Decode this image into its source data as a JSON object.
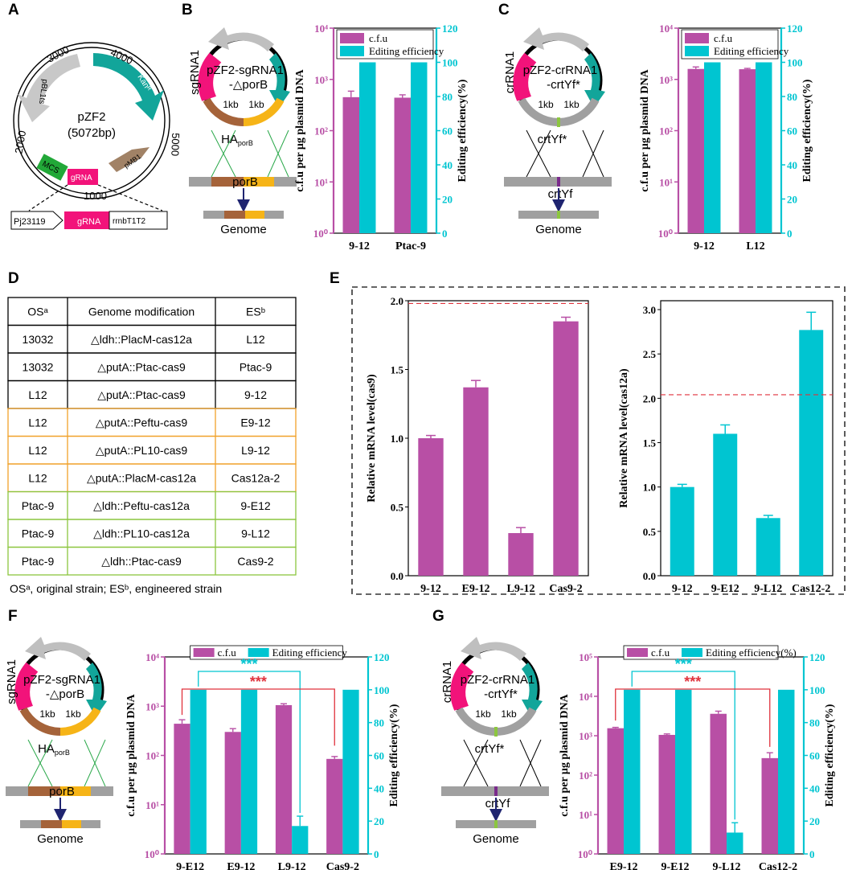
{
  "panel_letters": {
    "A": "A",
    "B": "B",
    "C": "C",
    "D": "D",
    "E": "E",
    "F": "F",
    "G": "G"
  },
  "colors": {
    "magenta": "#b84fa5",
    "cyan": "#00c5d1",
    "pink": "#f2137a",
    "teal": "#12a59a",
    "gray": "#bfbfbf",
    "brown": "#a5633a",
    "orange": "#f6b417",
    "green": "#3fa830",
    "navy": "#1f2470",
    "red": "#e0323c",
    "purple": "#7a2b8c",
    "lime": "#8cc63f",
    "mcs": "#22a838",
    "pmb1": "#a18266"
  },
  "panelA": {
    "plasmid_name": "pZF2",
    "plasmid_size": "(5072bp)",
    "ticks": [
      "1000",
      "2000",
      "3000",
      "4000",
      "5000"
    ],
    "features": {
      "kan": "Kanᴿ",
      "pbl": "pBL1ts",
      "mcs": "MCS",
      "grna": "gRNA",
      "pmb1": "pMB1"
    },
    "cassette": {
      "promoter": "Pj23119",
      "grna": "gRNA",
      "terminator": "rrnbT1T2"
    }
  },
  "schemes": {
    "B": {
      "side": "sgRNA1",
      "title1": "pZF2-sgRNA1",
      "title2": "-△porB",
      "kb": "1kb",
      "kb2": "1kb",
      "ha": "HA",
      "ha_sub": "porB",
      "gene": "porB",
      "genome": "Genome"
    },
    "C": {
      "side": "crRNA1",
      "title1": "pZF2-crRNA1",
      "title2": "-crtYf*",
      "kb": "1kb",
      "kb2": "1kb",
      "ha": "crtYf*",
      "gene": "crtYf",
      "genome": "Genome"
    },
    "F": {
      "side": "sgRNA1",
      "title1": "pZF2-sgRNA1",
      "title2": "-△porB",
      "kb": "1kb",
      "kb2": "1kb",
      "ha": "HA",
      "ha_sub": "porB",
      "gene": "porB",
      "genome": "Genome"
    },
    "G": {
      "side": "crRNA1",
      "title1": "pZF2-crRNA1",
      "title2": "-crtYf*",
      "kb": "1kb",
      "kb2": "1kb",
      "ha": "crtYf*",
      "gene": "crtYf",
      "genome": "Genome"
    }
  },
  "tableD": {
    "headers": [
      "OSᵃ",
      "Genome modification",
      "ESᵇ"
    ],
    "rows": [
      [
        "13032",
        "△ldh::PlacM-cas12a",
        "L12"
      ],
      [
        "13032",
        "△putA::Ptac-cas9",
        "Ptac-9"
      ],
      [
        "L12",
        "△putA::Ptac-cas9",
        "9-12"
      ],
      [
        "L12",
        "△putA::Peftu-cas9",
        "E9-12"
      ],
      [
        "L12",
        "△putA::PL10-cas9",
        "L9-12"
      ],
      [
        "L12",
        "△putA::PlacM-cas12a",
        "Cas12a-2"
      ],
      [
        "Ptac-9",
        "△ldh::Peftu-cas12a",
        "9-E12"
      ],
      [
        "Ptac-9",
        "△ldh::PL10-cas12a",
        "9-L12"
      ],
      [
        "Ptac-9",
        "△ldh::Ptac-cas9",
        "Cas9-2"
      ]
    ],
    "footnote": "OSᵃ, original strain; ESᵇ, engineered strain"
  },
  "chart_data": [
    {
      "id": "B",
      "type": "bar",
      "categories": [
        "9-12",
        "Ptac-9"
      ],
      "legend": [
        "c.f.u",
        "Editing efficiency"
      ],
      "series": [
        {
          "name": "c.f.u",
          "axis": "left",
          "values": [
            450,
            440
          ],
          "errors": [
            140,
            60
          ]
        },
        {
          "name": "Editing efficiency",
          "axis": "right",
          "values": [
            100,
            100
          ]
        }
      ],
      "ylabel": "c.f.u per μg plasmid DNA",
      "y2label": "Editing efficiency(%)",
      "ylim": [
        1,
        10000
      ],
      "yscale": "log",
      "y2lim": [
        0,
        120
      ],
      "ylabels": [
        "10⁰",
        "10¹",
        "10²",
        "10³",
        "10⁴"
      ],
      "y2ticks": [
        "0",
        "20",
        "40",
        "60",
        "80",
        "100",
        "120"
      ]
    },
    {
      "id": "C",
      "type": "bar",
      "categories": [
        "9-12",
        "L12"
      ],
      "legend": [
        "c.f.u",
        "Editing efficiency"
      ],
      "series": [
        {
          "name": "c.f.u",
          "axis": "left",
          "values": [
            1600,
            1580
          ],
          "errors": [
            150,
            60
          ]
        },
        {
          "name": "Editing efficiency",
          "axis": "right",
          "values": [
            100,
            100
          ]
        }
      ],
      "ylabel": "c.f.u per μg plasmid DNA",
      "y2label": "Editing efficiency(%)",
      "ylim": [
        1,
        10000
      ],
      "yscale": "log",
      "y2lim": [
        0,
        120
      ],
      "ylabels": [
        "10⁰",
        "10¹",
        "10²",
        "10³",
        "10⁴"
      ],
      "y2ticks": [
        "0",
        "20",
        "40",
        "60",
        "80",
        "100",
        "120"
      ]
    },
    {
      "id": "E1",
      "type": "bar",
      "categories": [
        "9-12",
        "E9-12",
        "L9-12",
        "Cas9-2"
      ],
      "series": [
        {
          "name": "Relative mRNA level(cas9)",
          "values": [
            1.0,
            1.37,
            0.31,
            1.85
          ],
          "errors": [
            0.02,
            0.05,
            0.04,
            0.03
          ]
        }
      ],
      "ylabel": "Relative mRNA level(cas9)",
      "ylim": [
        0,
        2.0
      ],
      "refline": 1.98,
      "yticks": [
        "0.0",
        "0.5",
        "1.0",
        "1.5",
        "2.0"
      ]
    },
    {
      "id": "E2",
      "type": "bar",
      "categories": [
        "9-12",
        "9-E12",
        "9-L12",
        "Cas12-2"
      ],
      "series": [
        {
          "name": "Relative mRNA level(cas12a)",
          "values": [
            1.0,
            1.6,
            0.65,
            2.77
          ],
          "errors": [
            0.03,
            0.1,
            0.03,
            0.2
          ]
        }
      ],
      "ylabel": "Relative mRNA level(cas12a)",
      "ylim": [
        0,
        3.1
      ],
      "refline": 2.04,
      "yticks": [
        "0.0",
        "0.5",
        "1.0",
        "1.5",
        "2.0",
        "2.5",
        "3.0"
      ]
    },
    {
      "id": "F",
      "type": "bar",
      "categories": [
        "9-E12",
        "E9-12",
        "L9-12",
        "Cas9-2"
      ],
      "legend": [
        "c.f.u",
        "Editing efficiency"
      ],
      "series": [
        {
          "name": "c.f.u",
          "axis": "left",
          "values": [
            440,
            300,
            1050,
            85
          ],
          "errors": [
            90,
            50,
            70,
            10
          ]
        },
        {
          "name": "Editing efficiency",
          "axis": "right",
          "values": [
            100,
            100,
            17,
            100
          ],
          "errors": [
            0,
            0,
            6,
            0
          ]
        }
      ],
      "ylabel": "c.f.u per μg plasmid DNA",
      "y2label": "Editing efficiency(%)",
      "ylim": [
        1,
        10000
      ],
      "yscale": "log",
      "y2lim": [
        0,
        120
      ],
      "ylabels": [
        "10⁰",
        "10¹",
        "10²",
        "10³",
        "10⁴"
      ],
      "y2ticks": [
        "0",
        "20",
        "40",
        "60",
        "80",
        "100",
        "120"
      ],
      "annotations": [
        {
          "text": "***",
          "color": "cyan",
          "from": 0,
          "to": 2
        },
        {
          "text": "***",
          "color": "red",
          "from": 0,
          "to": 3
        }
      ]
    },
    {
      "id": "G",
      "type": "bar",
      "categories": [
        "E9-12",
        "9-E12",
        "9-L12",
        "Cas12-2"
      ],
      "legend": [
        "c.f.u",
        "Editing efficiency(%)"
      ],
      "series": [
        {
          "name": "c.f.u",
          "axis": "left",
          "values": [
            1550,
            1050,
            3600,
            270
          ],
          "errors": [
            80,
            60,
            600,
            100
          ]
        },
        {
          "name": "Editing efficiency(%)",
          "axis": "right",
          "values": [
            100,
            100,
            13,
            100
          ],
          "errors": [
            0,
            0,
            6,
            0
          ]
        }
      ],
      "ylabel": "c.f.u per μg plasmid DNA",
      "y2label": "Editing efficiency(%)",
      "ylim": [
        1,
        100000
      ],
      "yscale": "log",
      "y2lim": [
        0,
        120
      ],
      "ylabels": [
        "10⁰",
        "10¹",
        "10²",
        "10³",
        "10⁴",
        "10⁵"
      ],
      "y2ticks": [
        "0",
        "20",
        "40",
        "60",
        "80",
        "100",
        "120"
      ],
      "annotations": [
        {
          "text": "***",
          "color": "cyan",
          "from": 0,
          "to": 2
        },
        {
          "text": "***",
          "color": "red",
          "from": 0,
          "to": 3
        }
      ]
    }
  ]
}
